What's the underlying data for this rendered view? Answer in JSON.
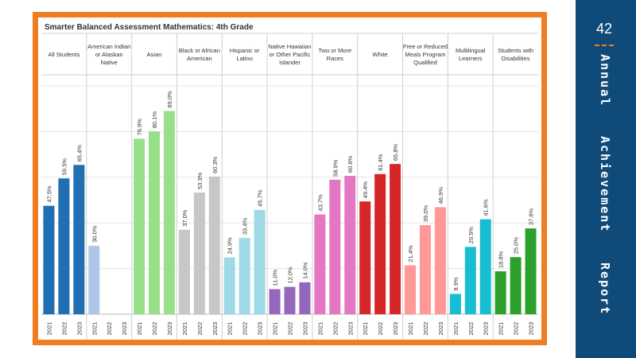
{
  "slide": {
    "page_number": "42",
    "side_title_words": [
      "Annual",
      "Achievement",
      "Report"
    ],
    "colors": {
      "sidebar": "#0f4a79",
      "frame": "#ef7d22"
    }
  },
  "chart_data": {
    "type": "bar",
    "title": "Smarter Balanced Assessment Mathematics: 4th Grade",
    "ylim": [
      0,
      100
    ],
    "grid": true,
    "x": [
      "2021",
      "2022",
      "2023"
    ],
    "series": [
      {
        "name": "All Students",
        "color": "#1f6fb2",
        "values": [
          47.5,
          59.5,
          65.4
        ],
        "labels": [
          "47.5%",
          "59.5%",
          "65.4%"
        ]
      },
      {
        "name": "American Indian or Alaskan Native",
        "color": "#aec7e8",
        "values": [
          30.0,
          null,
          null
        ],
        "labels": [
          "30.0%",
          "",
          ""
        ]
      },
      {
        "name": "Asian",
        "color": "#98df8a",
        "values": [
          76.9,
          80.1,
          89.0
        ],
        "labels": [
          "76.9%",
          "80.1%",
          "89.0%"
        ]
      },
      {
        "name": "Black or African American",
        "color": "#c7c7c7",
        "values": [
          37.0,
          53.3,
          60.3
        ],
        "labels": [
          "37.0%",
          "53.3%",
          "60.3%"
        ]
      },
      {
        "name": "Hispanic or Latino",
        "color": "#9edae5",
        "values": [
          24.9,
          33.4,
          45.7
        ],
        "labels": [
          "24.9%",
          "33.4%",
          "45.7%"
        ]
      },
      {
        "name": "Native Hawaiian or Other Pacific Islander",
        "color": "#9467bd",
        "values": [
          11.0,
          12.0,
          14.0
        ],
        "labels": [
          "11.0%",
          "12.0%",
          "14.0%"
        ]
      },
      {
        "name": "Two or More Races",
        "color": "#e377c2",
        "values": [
          43.7,
          58.9,
          60.6
        ],
        "labels": [
          "43.7%",
          "58.9%",
          "60.6%"
        ]
      },
      {
        "name": "White",
        "color": "#d62728",
        "values": [
          49.4,
          61.4,
          65.8
        ],
        "labels": [
          "49.4%",
          "61.4%",
          "65.8%"
        ]
      },
      {
        "name": "Free or Reduced Meals Program Qualified",
        "color": "#ff9896",
        "values": [
          21.4,
          39.0,
          46.9
        ],
        "labels": [
          "21.4%",
          "39.0%",
          "46.9%"
        ]
      },
      {
        "name": "Multilingual Learners",
        "color": "#17becf",
        "values": [
          8.9,
          29.5,
          41.6
        ],
        "labels": [
          "8.9%",
          "29.5%",
          "41.6%"
        ]
      },
      {
        "name": "Students with Disabilities",
        "color": "#2ca02c",
        "values": [
          18.8,
          25.0,
          37.6
        ],
        "labels": [
          "18.8%",
          "25.0%",
          "37.6%"
        ]
      }
    ]
  }
}
